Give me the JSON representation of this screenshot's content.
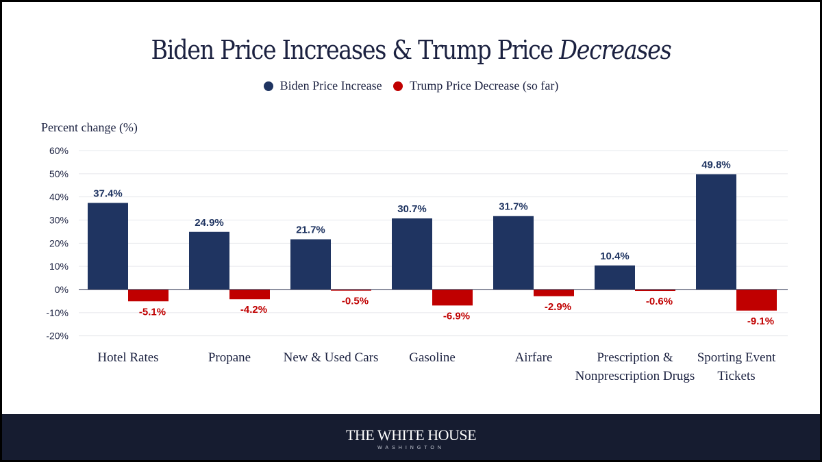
{
  "chart_data": {
    "type": "bar",
    "title_plain": "Biden Price Increases & Trump Price ",
    "title_italic": "Decreases",
    "ylabel": "Percent change (%)",
    "ylim": [
      -20,
      60
    ],
    "yticks": [
      60,
      50,
      40,
      30,
      20,
      10,
      0,
      -10,
      -20
    ],
    "ytick_labels": [
      "60%",
      "50%",
      "40%",
      "30%",
      "20%",
      "10%",
      "0%",
      "-10%",
      "-20%"
    ],
    "grid": true,
    "legend_placement": "top-center",
    "categories": [
      [
        "Hotel Rates"
      ],
      [
        "Propane"
      ],
      [
        "New & Used Cars"
      ],
      [
        "Gasoline"
      ],
      [
        "Airfare"
      ],
      [
        "Prescription &",
        "Nonprescription Drugs"
      ],
      [
        "Sporting Event",
        "Tickets"
      ]
    ],
    "series": [
      {
        "name": "Biden Price Increase",
        "color": "#1f3461",
        "values": [
          37.4,
          24.9,
          21.7,
          30.7,
          31.7,
          10.4,
          49.8
        ],
        "labels": [
          "37.4%",
          "24.9%",
          "21.7%",
          "30.7%",
          "31.7%",
          "10.4%",
          "49.8%"
        ]
      },
      {
        "name": "Trump Price Decrease (so far)",
        "color": "#c00000",
        "values": [
          -5.1,
          -4.2,
          -0.5,
          -6.9,
          -2.9,
          -0.6,
          -9.1
        ],
        "labels": [
          "-5.1%",
          "-4.2%",
          "-0.5%",
          "-6.9%",
          "-2.9%",
          "-0.6%",
          "-9.1%"
        ]
      }
    ]
  },
  "footer": {
    "logo_text": "THE WHITE HOUSE",
    "logo_sub": "WASHINGTON"
  }
}
